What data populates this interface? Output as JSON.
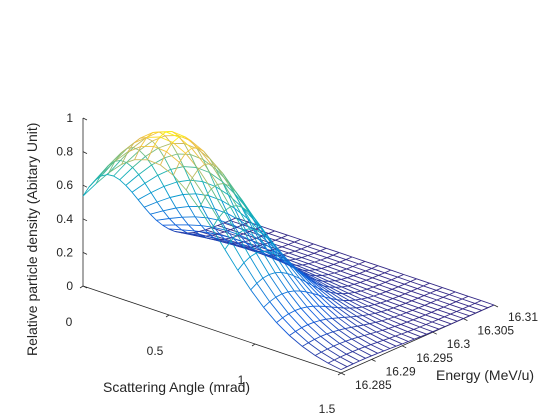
{
  "chart_data": {
    "type": "surface-mesh",
    "title": "",
    "xlabel": "Scattering Angle (mrad)",
    "ylabel": "Energy (MeV/u)",
    "zlabel": "Relative particle density (Abitary Unit)",
    "x_ticks": [
      "0",
      "0.5",
      "1",
      "1.5"
    ],
    "y_ticks": [
      "16.285",
      "16.29",
      "16.295",
      "16.3",
      "16.305",
      "16.31"
    ],
    "z_ticks": [
      "0",
      "0.2",
      "0.4",
      "0.6",
      "0.8",
      "1"
    ],
    "xlim": [
      0,
      1.5
    ],
    "ylim": [
      16.285,
      16.31
    ],
    "zlim": [
      0,
      1
    ],
    "grid": false,
    "colormap": "parula",
    "surface_model": {
      "description_free": "",
      "z_peak": 1.0,
      "angle_at_peak": 0.4,
      "energy_at_peak": 16.288,
      "angle_sigma": 0.4,
      "energy_sigma": 0.006
    },
    "mesh": {
      "n_angle": 20,
      "n_energy": 25
    }
  }
}
